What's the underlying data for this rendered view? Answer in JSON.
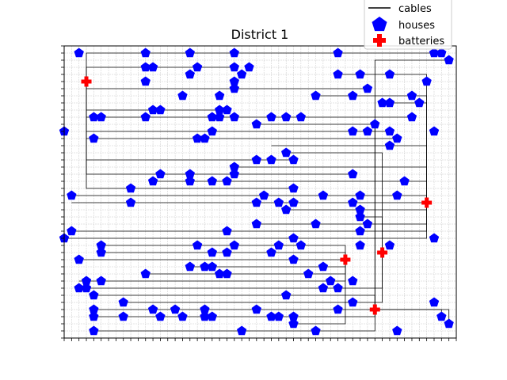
{
  "chart_data": {
    "type": "scatter",
    "title": "District 1",
    "xlabel": "",
    "ylabel": "",
    "xlim": [
      0,
      53
    ],
    "ylim": [
      -1,
      40
    ],
    "grid": true,
    "grid_step": 1,
    "tick_labels": false,
    "legend_position": "top-right",
    "legend": [
      "cables",
      "houses",
      "batteries"
    ],
    "colors": {
      "cables": "#000000",
      "houses": "#0000ff",
      "batteries": "#ff0000",
      "grid": "#c8c8c8"
    },
    "batteries": [
      [
        3,
        35
      ],
      [
        49,
        18
      ],
      [
        38,
        10
      ],
      [
        43,
        11
      ],
      [
        42,
        3
      ]
    ],
    "houses": [
      [
        2,
        39
      ],
      [
        11,
        39
      ],
      [
        17,
        39
      ],
      [
        23,
        39
      ],
      [
        37,
        39
      ],
      [
        50,
        39
      ],
      [
        51,
        39
      ],
      [
        52,
        38
      ],
      [
        11,
        37
      ],
      [
        12,
        37
      ],
      [
        18,
        37
      ],
      [
        23,
        37
      ],
      [
        25,
        37
      ],
      [
        37,
        36
      ],
      [
        40,
        36
      ],
      [
        44,
        36
      ],
      [
        49,
        35
      ],
      [
        17,
        36
      ],
      [
        24,
        36
      ],
      [
        11,
        35
      ],
      [
        23,
        35
      ],
      [
        41,
        34
      ],
      [
        16,
        33
      ],
      [
        23,
        34
      ],
      [
        34,
        33
      ],
      [
        21,
        33
      ],
      [
        39,
        33
      ],
      [
        47,
        33
      ],
      [
        43,
        32
      ],
      [
        44,
        32
      ],
      [
        48,
        32
      ],
      [
        12,
        31
      ],
      [
        13,
        31
      ],
      [
        21,
        31
      ],
      [
        22,
        31
      ],
      [
        47,
        30
      ],
      [
        4,
        30
      ],
      [
        5,
        30
      ],
      [
        11,
        30
      ],
      [
        20,
        30
      ],
      [
        21,
        30
      ],
      [
        23,
        30
      ],
      [
        26,
        29
      ],
      [
        28,
        30
      ],
      [
        30,
        30
      ],
      [
        32,
        30
      ],
      [
        42,
        29
      ],
      [
        39,
        28
      ],
      [
        41,
        28
      ],
      [
        44,
        28
      ],
      [
        50,
        28
      ],
      [
        0,
        28
      ],
      [
        4,
        27
      ],
      [
        18,
        27
      ],
      [
        19,
        27
      ],
      [
        20,
        28
      ],
      [
        45,
        27
      ],
      [
        44,
        26
      ],
      [
        26,
        24
      ],
      [
        28,
        24
      ],
      [
        30,
        25
      ],
      [
        31,
        24
      ],
      [
        23,
        23
      ],
      [
        13,
        22
      ],
      [
        17,
        22
      ],
      [
        23,
        22
      ],
      [
        39,
        22
      ],
      [
        46,
        21
      ],
      [
        17,
        21
      ],
      [
        20,
        21
      ],
      [
        12,
        21
      ],
      [
        22,
        21
      ],
      [
        9,
        20
      ],
      [
        1,
        19
      ],
      [
        31,
        20
      ],
      [
        27,
        19
      ],
      [
        35,
        19
      ],
      [
        39,
        18
      ],
      [
        40,
        19
      ],
      [
        45,
        19
      ],
      [
        9,
        18
      ],
      [
        26,
        18
      ],
      [
        29,
        18
      ],
      [
        30,
        17
      ],
      [
        31,
        18
      ],
      [
        40,
        17
      ],
      [
        40,
        16
      ],
      [
        41,
        15
      ],
      [
        26,
        15
      ],
      [
        34,
        15
      ],
      [
        1,
        14
      ],
      [
        22,
        14
      ],
      [
        40,
        14
      ],
      [
        0,
        13
      ],
      [
        5,
        12
      ],
      [
        18,
        12
      ],
      [
        23,
        12
      ],
      [
        29,
        12
      ],
      [
        31,
        13
      ],
      [
        32,
        12
      ],
      [
        50,
        13
      ],
      [
        40,
        12
      ],
      [
        44,
        12
      ],
      [
        5,
        11
      ],
      [
        20,
        11
      ],
      [
        22,
        11
      ],
      [
        28,
        11
      ],
      [
        31,
        10
      ],
      [
        35,
        9
      ],
      [
        2,
        10
      ],
      [
        17,
        9
      ],
      [
        19,
        9
      ],
      [
        20,
        9
      ],
      [
        21,
        8
      ],
      [
        22,
        8
      ],
      [
        33,
        8
      ],
      [
        11,
        8
      ],
      [
        39,
        7
      ],
      [
        36,
        7
      ],
      [
        3,
        7
      ],
      [
        5,
        7
      ],
      [
        2,
        6
      ],
      [
        3,
        6
      ],
      [
        4,
        5
      ],
      [
        30,
        5
      ],
      [
        35,
        6
      ],
      [
        37,
        6
      ],
      [
        39,
        4
      ],
      [
        8,
        4
      ],
      [
        4,
        3
      ],
      [
        12,
        3
      ],
      [
        15,
        3
      ],
      [
        19,
        3
      ],
      [
        26,
        3
      ],
      [
        37,
        3
      ],
      [
        50,
        4
      ],
      [
        13,
        2
      ],
      [
        4,
        2
      ],
      [
        8,
        2
      ],
      [
        16,
        2
      ],
      [
        19,
        2
      ],
      [
        20,
        2
      ],
      [
        28,
        2
      ],
      [
        29,
        2
      ],
      [
        31,
        2
      ],
      [
        31,
        1
      ],
      [
        51,
        2
      ],
      [
        52,
        1
      ],
      [
        24,
        0
      ],
      [
        4,
        0
      ],
      [
        34,
        0
      ],
      [
        45,
        0
      ]
    ],
    "cables": [
      [
        [
          3,
          35
        ],
        [
          3,
          39
        ],
        [
          50,
          39
        ]
      ],
      [
        [
          3,
          35
        ],
        [
          3,
          37
        ],
        [
          23,
          37
        ]
      ],
      [
        [
          3,
          35
        ],
        [
          3,
          34
        ],
        [
          41,
          34
        ]
      ],
      [
        [
          3,
          35
        ],
        [
          3,
          31
        ],
        [
          22,
          31
        ]
      ],
      [
        [
          3,
          35
        ],
        [
          3,
          30
        ],
        [
          47,
          30
        ]
      ],
      [
        [
          3,
          35
        ],
        [
          3,
          28
        ],
        [
          44,
          28
        ]
      ],
      [
        [
          3,
          35
        ],
        [
          3,
          27
        ],
        [
          45,
          27
        ]
      ],
      [
        [
          3,
          35
        ],
        [
          3,
          24
        ],
        [
          31,
          24
        ]
      ],
      [
        [
          3,
          35
        ],
        [
          3,
          22
        ],
        [
          39,
          22
        ]
      ],
      [
        [
          3,
          35
        ],
        [
          3,
          20
        ],
        [
          31,
          20
        ]
      ],
      [
        [
          49,
          18
        ],
        [
          49,
          36
        ],
        [
          37,
          36
        ]
      ],
      [
        [
          49,
          18
        ],
        [
          49,
          33
        ],
        [
          34,
          33
        ]
      ],
      [
        [
          49,
          18
        ],
        [
          49,
          32
        ],
        [
          43,
          32
        ]
      ],
      [
        [
          49,
          18
        ],
        [
          49,
          26
        ],
        [
          28,
          26
        ]
      ],
      [
        [
          49,
          18
        ],
        [
          49,
          23
        ],
        [
          23,
          23
        ]
      ],
      [
        [
          49,
          18
        ],
        [
          49,
          21
        ],
        [
          12,
          21
        ]
      ],
      [
        [
          49,
          18
        ],
        [
          49,
          19
        ],
        [
          1,
          19
        ]
      ],
      [
        [
          49,
          18
        ],
        [
          1,
          18
        ]
      ],
      [
        [
          49,
          18
        ],
        [
          49,
          17
        ],
        [
          30,
          17
        ]
      ],
      [
        [
          49,
          18
        ],
        [
          49,
          15
        ],
        [
          26,
          15
        ]
      ],
      [
        [
          49,
          18
        ],
        [
          49,
          14
        ],
        [
          1,
          14
        ]
      ],
      [
        [
          49,
          18
        ],
        [
          49,
          13
        ],
        [
          0,
          13
        ]
      ],
      [
        [
          38,
          10
        ],
        [
          38,
          12
        ],
        [
          5,
          12
        ]
      ],
      [
        [
          38,
          10
        ],
        [
          38,
          11
        ],
        [
          5,
          11
        ]
      ],
      [
        [
          38,
          10
        ],
        [
          2,
          10
        ]
      ],
      [
        [
          38,
          10
        ],
        [
          38,
          9
        ],
        [
          17,
          9
        ]
      ],
      [
        [
          38,
          10
        ],
        [
          38,
          8
        ],
        [
          11,
          8
        ]
      ],
      [
        [
          38,
          10
        ],
        [
          38,
          7
        ],
        [
          2,
          7
        ]
      ],
      [
        [
          38,
          10
        ],
        [
          38,
          1
        ],
        [
          31,
          1
        ]
      ],
      [
        [
          43,
          11
        ],
        [
          43,
          16
        ],
        [
          40,
          16
        ]
      ],
      [
        [
          43,
          11
        ],
        [
          43,
          6
        ],
        [
          2,
          6
        ]
      ],
      [
        [
          43,
          11
        ],
        [
          43,
          4
        ],
        [
          8,
          4
        ]
      ],
      [
        [
          43,
          11
        ],
        [
          43,
          25
        ],
        [
          30,
          25
        ]
      ],
      [
        [
          42,
          3
        ],
        [
          4,
          3
        ]
      ],
      [
        [
          42,
          3
        ],
        [
          42,
          2
        ],
        [
          4,
          2
        ]
      ],
      [
        [
          42,
          3
        ],
        [
          42,
          5
        ],
        [
          4,
          5
        ]
      ],
      [
        [
          42,
          3
        ],
        [
          42,
          38
        ],
        [
          52,
          38
        ]
      ],
      [
        [
          42,
          3
        ],
        [
          42,
          29
        ],
        [
          26,
          29
        ]
      ],
      [
        [
          42,
          3
        ],
        [
          42,
          0
        ],
        [
          4,
          0
        ]
      ],
      [
        [
          42,
          3
        ],
        [
          51,
          3
        ],
        [
          51,
          2
        ]
      ],
      [
        [
          42,
          3
        ],
        [
          52,
          3
        ],
        [
          52,
          1
        ]
      ]
    ]
  }
}
